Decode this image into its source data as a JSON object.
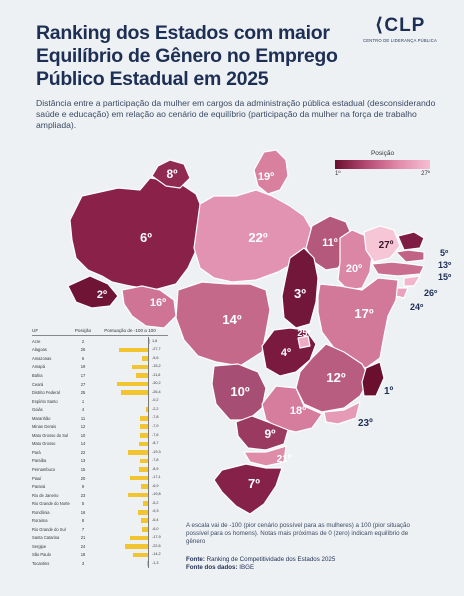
{
  "header": {
    "title": "Ranking dos Estados com maior Equilíbrio de Gênero no Emprego Público Estadual em 2025",
    "subtitle": "Distância entre a participação da mulher em cargos da administração pública estadual (desconsiderando saúde e educação) em relação ao cenário de equilíbrio (participação da mulher na força de trabalho ampliada).",
    "logo_text": "CLP",
    "logo_subtext": "CENTRO DE LIDERANÇA PÚBLICA"
  },
  "legend": {
    "title": "Posição",
    "min_label": "1º",
    "max_label": "27º",
    "colors": [
      "#6b0f2f",
      "#b64a72",
      "#e28aaa",
      "#f4bfd2"
    ]
  },
  "map": {
    "states": [
      {
        "uf": "AM",
        "rank": "6º",
        "color": "#8a2148"
      },
      {
        "uf": "PA",
        "rank": "22º",
        "color": "#e293b1"
      },
      {
        "uf": "RR",
        "rank": "8º",
        "color": "#912a51"
      },
      {
        "uf": "AP",
        "rank": "19º",
        "color": "#d9809f"
      },
      {
        "uf": "AC",
        "rank": "2º",
        "color": "#6f1435"
      },
      {
        "uf": "RO",
        "rank": "16º",
        "color": "#cf7495"
      },
      {
        "uf": "MT",
        "rank": "14º",
        "color": "#c5698b"
      },
      {
        "uf": "TO",
        "rank": "3º",
        "color": "#72163a"
      },
      {
        "uf": "MA",
        "rank": "11º",
        "color": "#b4587c"
      },
      {
        "uf": "PI",
        "rank": "20º",
        "color": "#dc86a5"
      },
      {
        "uf": "CE",
        "rank": "27º",
        "color": "#f6c6d7"
      },
      {
        "uf": "RN",
        "rank": "5º",
        "color": "#7f1c43"
      },
      {
        "uf": "PB",
        "rank": "13º",
        "color": "#c06384"
      },
      {
        "uf": "PE",
        "rank": "15º",
        "color": "#ca6e90"
      },
      {
        "uf": "AL",
        "rank": "26º",
        "color": "#f1b6cb"
      },
      {
        "uf": "SE",
        "rank": "24º",
        "color": "#e9a1bc"
      },
      {
        "uf": "BA",
        "rank": "17º",
        "color": "#d27898"
      },
      {
        "uf": "GO",
        "rank": "4º",
        "color": "#7a1a3f"
      },
      {
        "uf": "DF",
        "rank": "25º",
        "color": "#eeabc4"
      },
      {
        "uf": "MG",
        "rank": "12º",
        "color": "#b95d80"
      },
      {
        "uf": "ES",
        "rank": "1º",
        "color": "#6b0f2f"
      },
      {
        "uf": "MS",
        "rank": "10º",
        "color": "#a64e73"
      },
      {
        "uf": "SP",
        "rank": "18º",
        "color": "#d67c9c"
      },
      {
        "uf": "RJ",
        "rank": "23º",
        "color": "#e59ab5"
      },
      {
        "uf": "PR",
        "rank": "9º",
        "color": "#9a3a60"
      },
      {
        "uf": "SC",
        "rank": "21º",
        "color": "#df8ca9"
      },
      {
        "uf": "RS",
        "rank": "7º",
        "color": "#86214a"
      }
    ]
  },
  "table": {
    "headers": {
      "uf": "UF",
      "pos": "Posição",
      "score": "Pontuação de -100 a 100"
    },
    "rows": [
      {
        "uf": "Acre",
        "pos": "2",
        "value": "1,6",
        "score": 1.6
      },
      {
        "uf": "Alagoas",
        "pos": "26",
        "value": "-27,7",
        "score": -27.7
      },
      {
        "uf": "Amazonas",
        "pos": "6",
        "value": "-5,6",
        "score": -5.6
      },
      {
        "uf": "Amapá",
        "pos": "19",
        "value": "-15,2",
        "score": -15.2
      },
      {
        "uf": "Bahia",
        "pos": "17",
        "value": "-11,6",
        "score": -11.6
      },
      {
        "uf": "Ceará",
        "pos": "27",
        "value": "-30,2",
        "score": -30.2
      },
      {
        "uf": "Distrito Federal",
        "pos": "25",
        "value": "-26,4",
        "score": -26.4
      },
      {
        "uf": "Espírito Santo",
        "pos": "1",
        "value": "-0,2",
        "score": -0.2
      },
      {
        "uf": "Goiás",
        "pos": "4",
        "value": "-2,2",
        "score": -2.2
      },
      {
        "uf": "Maranhão",
        "pos": "11",
        "value": "-7,8",
        "score": -7.8
      },
      {
        "uf": "Minas Gerais",
        "pos": "12",
        "value": "-7,9",
        "score": -7.9
      },
      {
        "uf": "Mato Grosso do Sul",
        "pos": "10",
        "value": "-7,6",
        "score": -7.6
      },
      {
        "uf": "Mato Grosso",
        "pos": "14",
        "value": "-8,7",
        "score": -8.7
      },
      {
        "uf": "Pará",
        "pos": "22",
        "value": "-19,3",
        "score": -19.3
      },
      {
        "uf": "Paraíba",
        "pos": "13",
        "value": "-7,8",
        "score": -7.8
      },
      {
        "uf": "Pernambuco",
        "pos": "15",
        "value": "-8,9",
        "score": -8.9
      },
      {
        "uf": "Piauí",
        "pos": "20",
        "value": "-17,1",
        "score": -17.1
      },
      {
        "uf": "Paraná",
        "pos": "9",
        "value": "-6,9",
        "score": -6.9
      },
      {
        "uf": "Rio de Janeiro",
        "pos": "23",
        "value": "-19,8",
        "score": -19.8
      },
      {
        "uf": "Rio Grande do Norte",
        "pos": "5",
        "value": "-5,2",
        "score": -5.2
      },
      {
        "uf": "Rondônia",
        "pos": "16",
        "value": "-9,3",
        "score": -9.3
      },
      {
        "uf": "Roraima",
        "pos": "8",
        "value": "-6,4",
        "score": -6.4
      },
      {
        "uf": "Rio Grande do Sul",
        "pos": "7",
        "value": "-6,0",
        "score": -6.0
      },
      {
        "uf": "Santa Catarina",
        "pos": "21",
        "value": "-17,9",
        "score": -17.9
      },
      {
        "uf": "Sergipe",
        "pos": "24",
        "value": "-22,6",
        "score": -22.6
      },
      {
        "uf": "São Paulo",
        "pos": "18",
        "value": "-14,2",
        "score": -14.2
      },
      {
        "uf": "Tocantins",
        "pos": "3",
        "value": "-1,3",
        "score": -1.3
      }
    ]
  },
  "footer": {
    "note": "A escala vai de -100 (pior cenário possível para as mulheres) a 100 (pior situação possível para os homens). Notas mais próximas de 0 (zero) indicam equilíbrio de gênero",
    "source_label": "Fonte:",
    "source_text": "Ranking de Competitividade dos Estados 2025",
    "data_label": "Fonte dos dados:",
    "data_text": "IBGE"
  }
}
